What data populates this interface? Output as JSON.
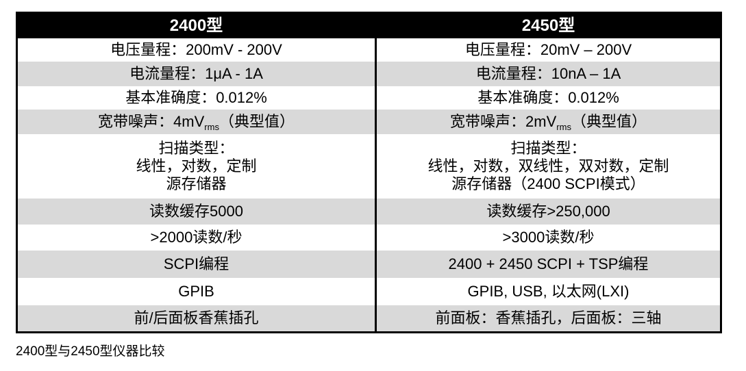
{
  "table": {
    "headers": [
      "2400型",
      "2450型"
    ],
    "rows": [
      {
        "a": "电压量程：200mV - 200V",
        "b": "电压量程：20mV – 200V"
      },
      {
        "a": "电流量程：1μA - 1A",
        "b": "电流量程：10nA – 1A"
      },
      {
        "a": "基本准确度：0.012%",
        "b": "基本准确度：0.012%"
      },
      {
        "a_pre": "宽带噪声：4mV",
        "a_sub": "rms",
        "a_post": "（典型值）",
        "b_pre": "宽带噪声：2mV",
        "b_sub": "rms",
        "b_post": "（典型值）"
      },
      {
        "a_lines": [
          "扫描类型：",
          "线性，对数，定制",
          "源存储器"
        ],
        "b_lines": [
          "扫描类型：",
          "线性，对数，双线性，双对数，定制",
          "源存储器（2400  SCPI模式）"
        ]
      },
      {
        "a": "读数缓存5000",
        "b": "读数缓存>250,000"
      },
      {
        "a": ">2000读数/秒",
        "b": ">3000读数/秒"
      },
      {
        "a": "SCPI编程",
        "b": "2400 + 2450 SCPI + TSP编程"
      },
      {
        "a": "GPIB",
        "b": "GPIB, USB, 以太网(LXI)"
      },
      {
        "a": "前/后面板香蕉插孔",
        "b": "前面板：香蕉插孔，后面板：三轴"
      }
    ]
  },
  "caption": "2400型与2450型仪器比较"
}
